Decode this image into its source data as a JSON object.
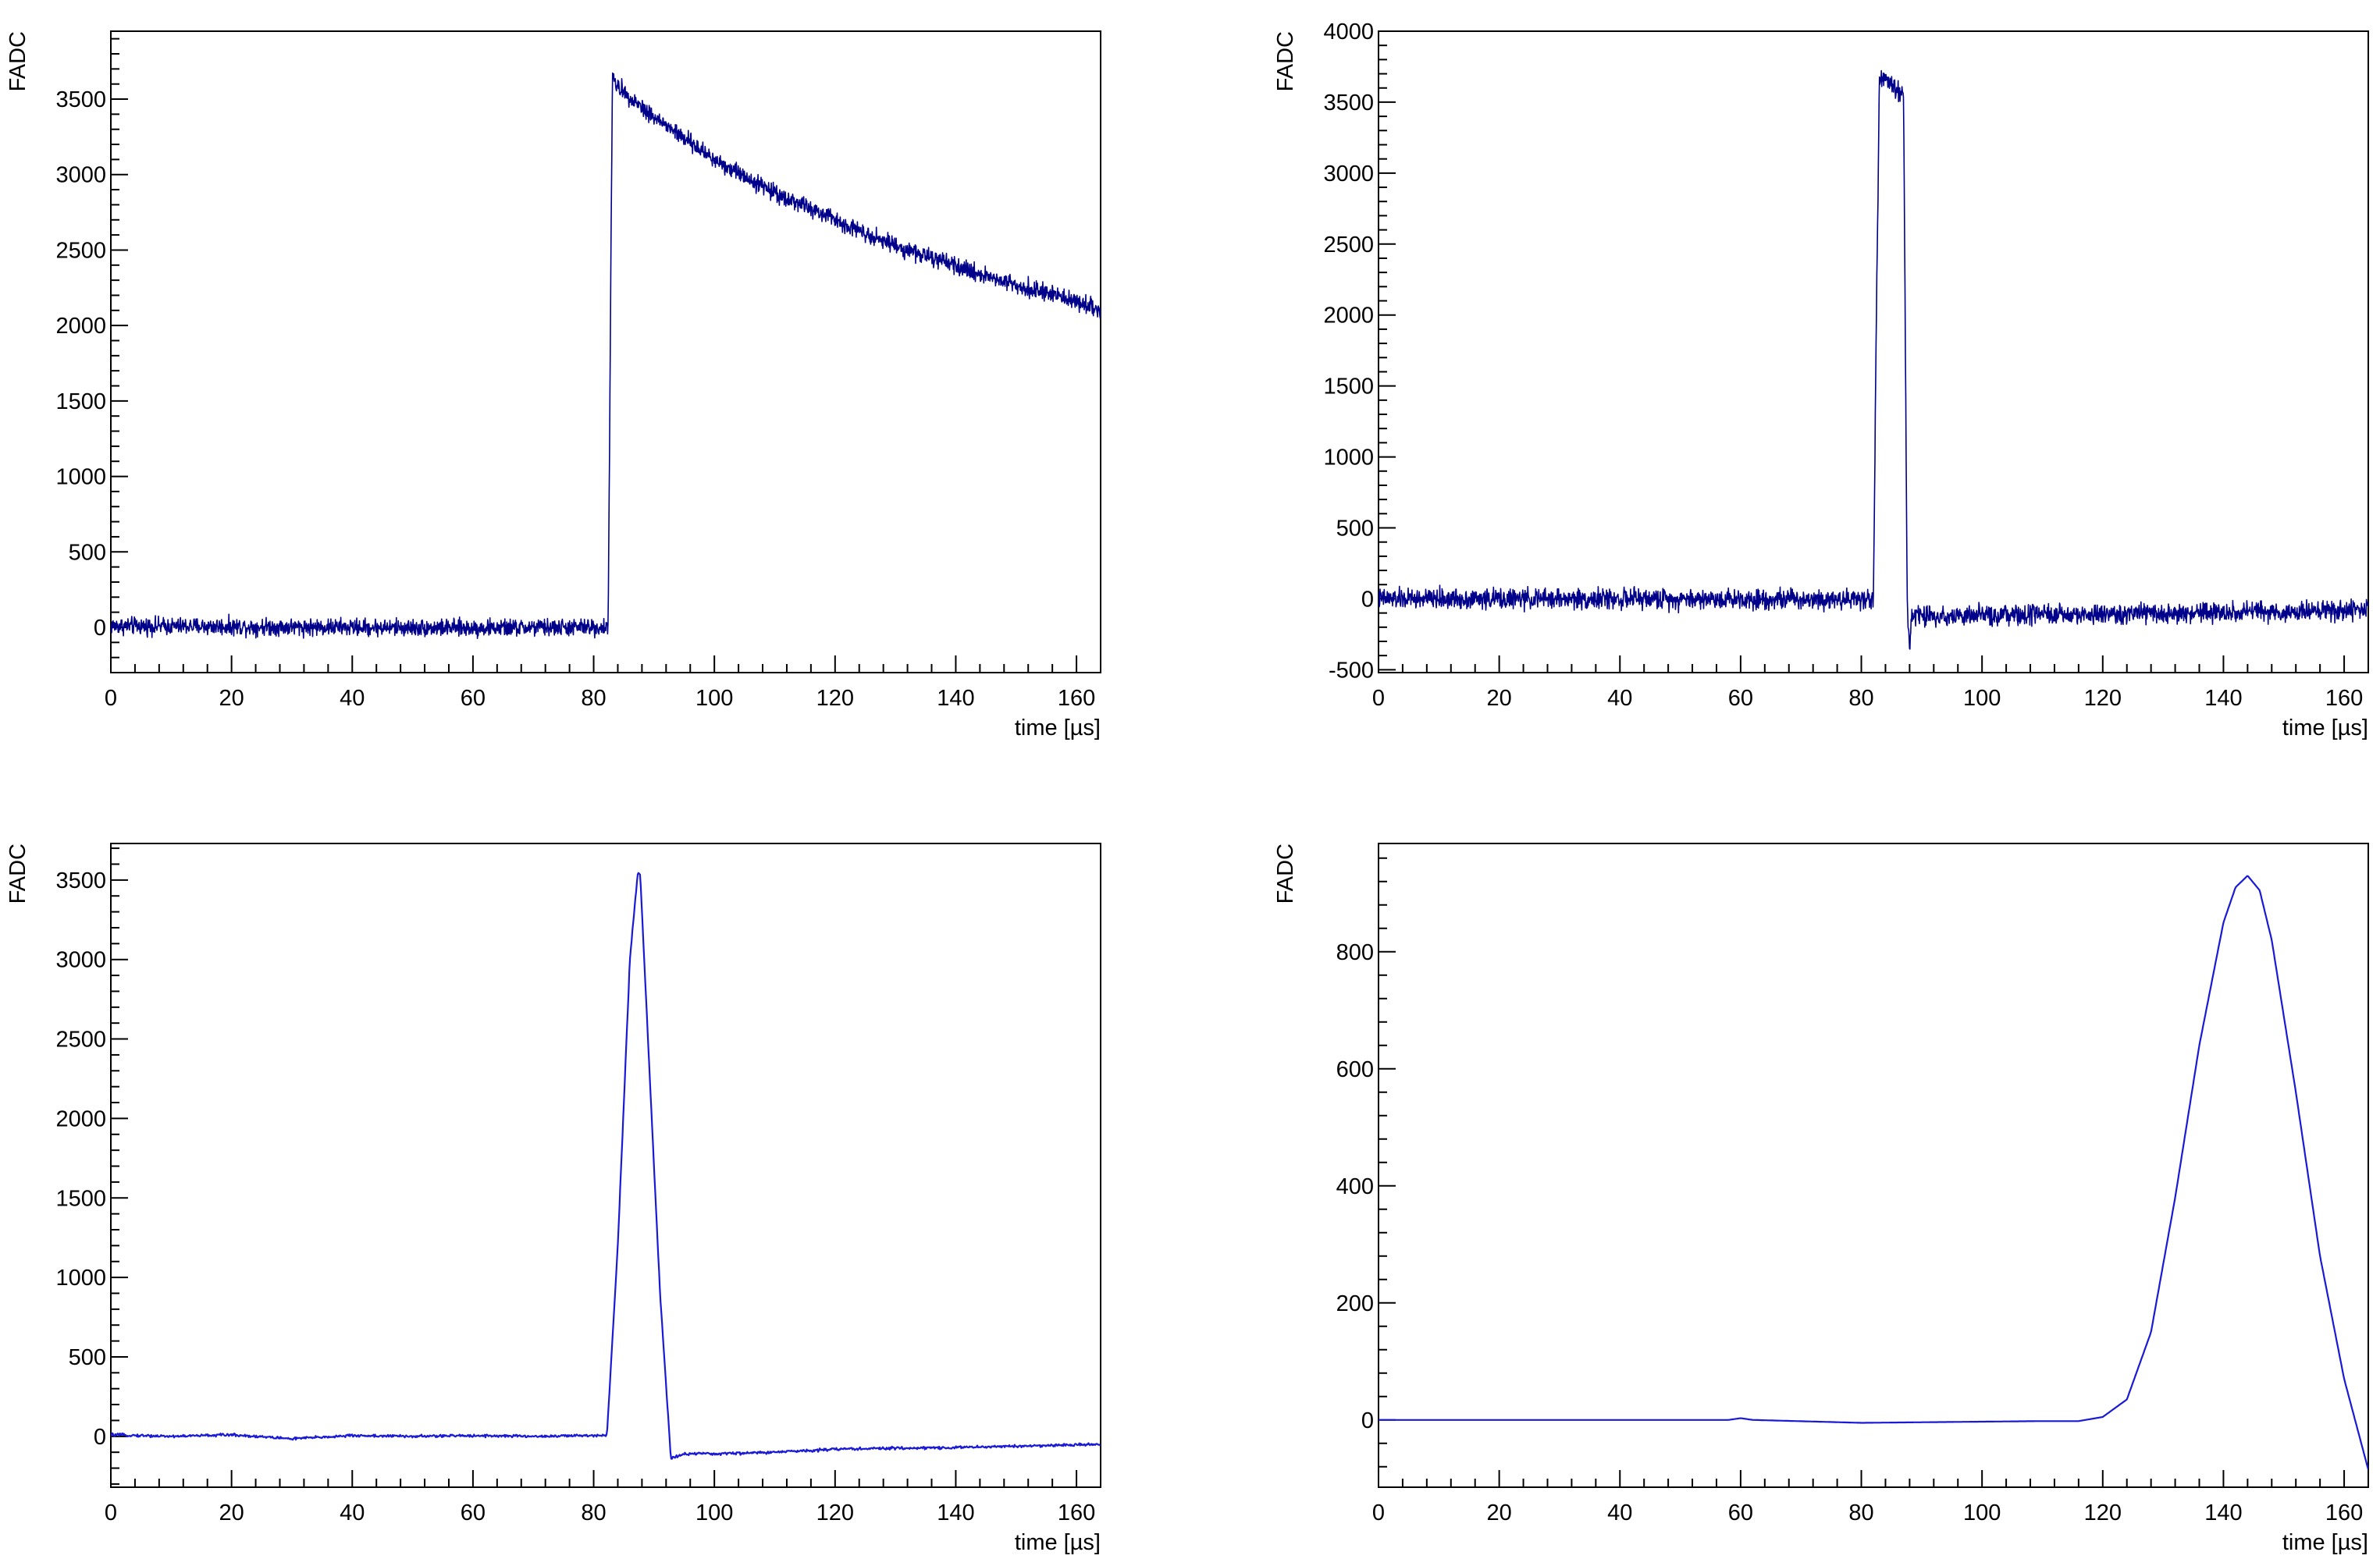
{
  "colors": {
    "trace": "#00008b",
    "trace_thin": "#1a1ad6",
    "axis": "#000000",
    "background": "#ffffff"
  },
  "chart_data": [
    {
      "type": "line",
      "panel": "top-left",
      "xlabel": "time [µs]",
      "ylabel": "FADC",
      "xlim": [
        0,
        164
      ],
      "ylim": [
        -300,
        3950
      ],
      "xticks": [
        0,
        20,
        40,
        60,
        80,
        100,
        120,
        140,
        160
      ],
      "xtick_labels": [
        "0",
        "20",
        "40",
        "60",
        "80",
        "100",
        "120",
        "140",
        "160"
      ],
      "yticks": [
        0,
        500,
        1000,
        1500,
        2000,
        2500,
        3000,
        3500
      ],
      "ytick_labels": [
        "0",
        "500",
        "1000",
        "1500",
        "2000",
        "2500",
        "3000",
        "3500"
      ],
      "noise_amplitude": 40,
      "series": [
        {
          "values_x": [
            0,
            20,
            40,
            60,
            80,
            82.4,
            82.8,
            83.1,
            83.5,
            90,
            100,
            110,
            120,
            130,
            140,
            150,
            160,
            164
          ],
          "values_y": [
            10,
            5,
            0,
            -5,
            0,
            0,
            2100,
            3650,
            3600,
            3380,
            3100,
            2880,
            2700,
            2530,
            2390,
            2270,
            2160,
            2100
          ]
        }
      ]
    },
    {
      "type": "line",
      "panel": "top-right",
      "xlabel": "time [µs]",
      "ylabel": "FADC",
      "xlim": [
        0,
        164
      ],
      "ylim": [
        -520,
        4000
      ],
      "xticks": [
        0,
        20,
        40,
        60,
        80,
        100,
        120,
        140,
        160
      ],
      "xtick_labels": [
        "0",
        "20",
        "40",
        "60",
        "80",
        "100",
        "120",
        "140",
        "160"
      ],
      "yticks": [
        -500,
        0,
        500,
        1000,
        1500,
        2000,
        2500,
        3000,
        3500,
        4000
      ],
      "ytick_labels": [
        "-500",
        "0",
        "500",
        "1000",
        "1500",
        "2000",
        "2500",
        "3000",
        "3500",
        "4000"
      ],
      "noise_amplitude": 50,
      "series": [
        {
          "values_x": [
            0,
            20,
            40,
            60,
            80,
            82.0,
            82.5,
            83.0,
            85,
            87.0,
            87.6,
            88.0,
            88.3,
            100,
            120,
            140,
            164
          ],
          "values_y": [
            0,
            0,
            0,
            0,
            0,
            0,
            2000,
            3680,
            3620,
            3550,
            0,
            -380,
            -120,
            -120,
            -110,
            -100,
            -80
          ]
        }
      ]
    },
    {
      "type": "line",
      "panel": "bottom-left",
      "xlabel": "time [µs]",
      "ylabel": "FADC",
      "xlim": [
        0,
        164
      ],
      "ylim": [
        -320,
        3730
      ],
      "xticks": [
        0,
        20,
        40,
        60,
        80,
        100,
        120,
        140,
        160
      ],
      "xtick_labels": [
        "0",
        "20",
        "40",
        "60",
        "80",
        "100",
        "120",
        "140",
        "160"
      ],
      "yticks": [
        0,
        500,
        1000,
        1500,
        2000,
        2500,
        3000,
        3500
      ],
      "ytick_labels": [
        "0",
        "500",
        "1000",
        "1500",
        "2000",
        "2500",
        "3000",
        "3500"
      ],
      "noise_amplitude": 6,
      "series": [
        {
          "values_x": [
            0,
            10,
            20,
            30,
            40,
            50,
            60,
            70,
            80,
            82.2,
            84,
            86,
            87.3,
            87.7,
            89,
            91,
            92.8,
            95,
            100,
            110,
            120,
            140,
            164
          ],
          "values_y": [
            10,
            0,
            10,
            -15,
            5,
            0,
            5,
            0,
            5,
            10,
            1200,
            3000,
            3540,
            3540,
            2500,
            900,
            -140,
            -110,
            -110,
            -100,
            -80,
            -70,
            -50
          ]
        }
      ]
    },
    {
      "type": "line",
      "panel": "bottom-right",
      "xlabel": "time [µs]",
      "ylabel": "FADC",
      "xlim": [
        0,
        164
      ],
      "ylim": [
        -115,
        985
      ],
      "xticks": [
        0,
        20,
        40,
        60,
        80,
        100,
        120,
        140,
        160
      ],
      "xtick_labels": [
        "0",
        "20",
        "40",
        "60",
        "80",
        "100",
        "120",
        "140",
        "160"
      ],
      "yticks": [
        0,
        200,
        400,
        600,
        800
      ],
      "ytick_labels": [
        "0",
        "200",
        "400",
        "600",
        "800"
      ],
      "noise_amplitude": 0,
      "series": [
        {
          "values_x": [
            0,
            20,
            40,
            58,
            60,
            62,
            80,
            100,
            110,
            116,
            120,
            124,
            128,
            132,
            136,
            140,
            142,
            144,
            146,
            148,
            152,
            156,
            160,
            164
          ],
          "values_y": [
            0,
            0,
            0,
            0,
            3,
            0,
            -5,
            -3,
            -2,
            -2,
            5,
            35,
            150,
            380,
            640,
            850,
            910,
            930,
            905,
            820,
            560,
            280,
            70,
            -85
          ]
        }
      ]
    }
  ]
}
